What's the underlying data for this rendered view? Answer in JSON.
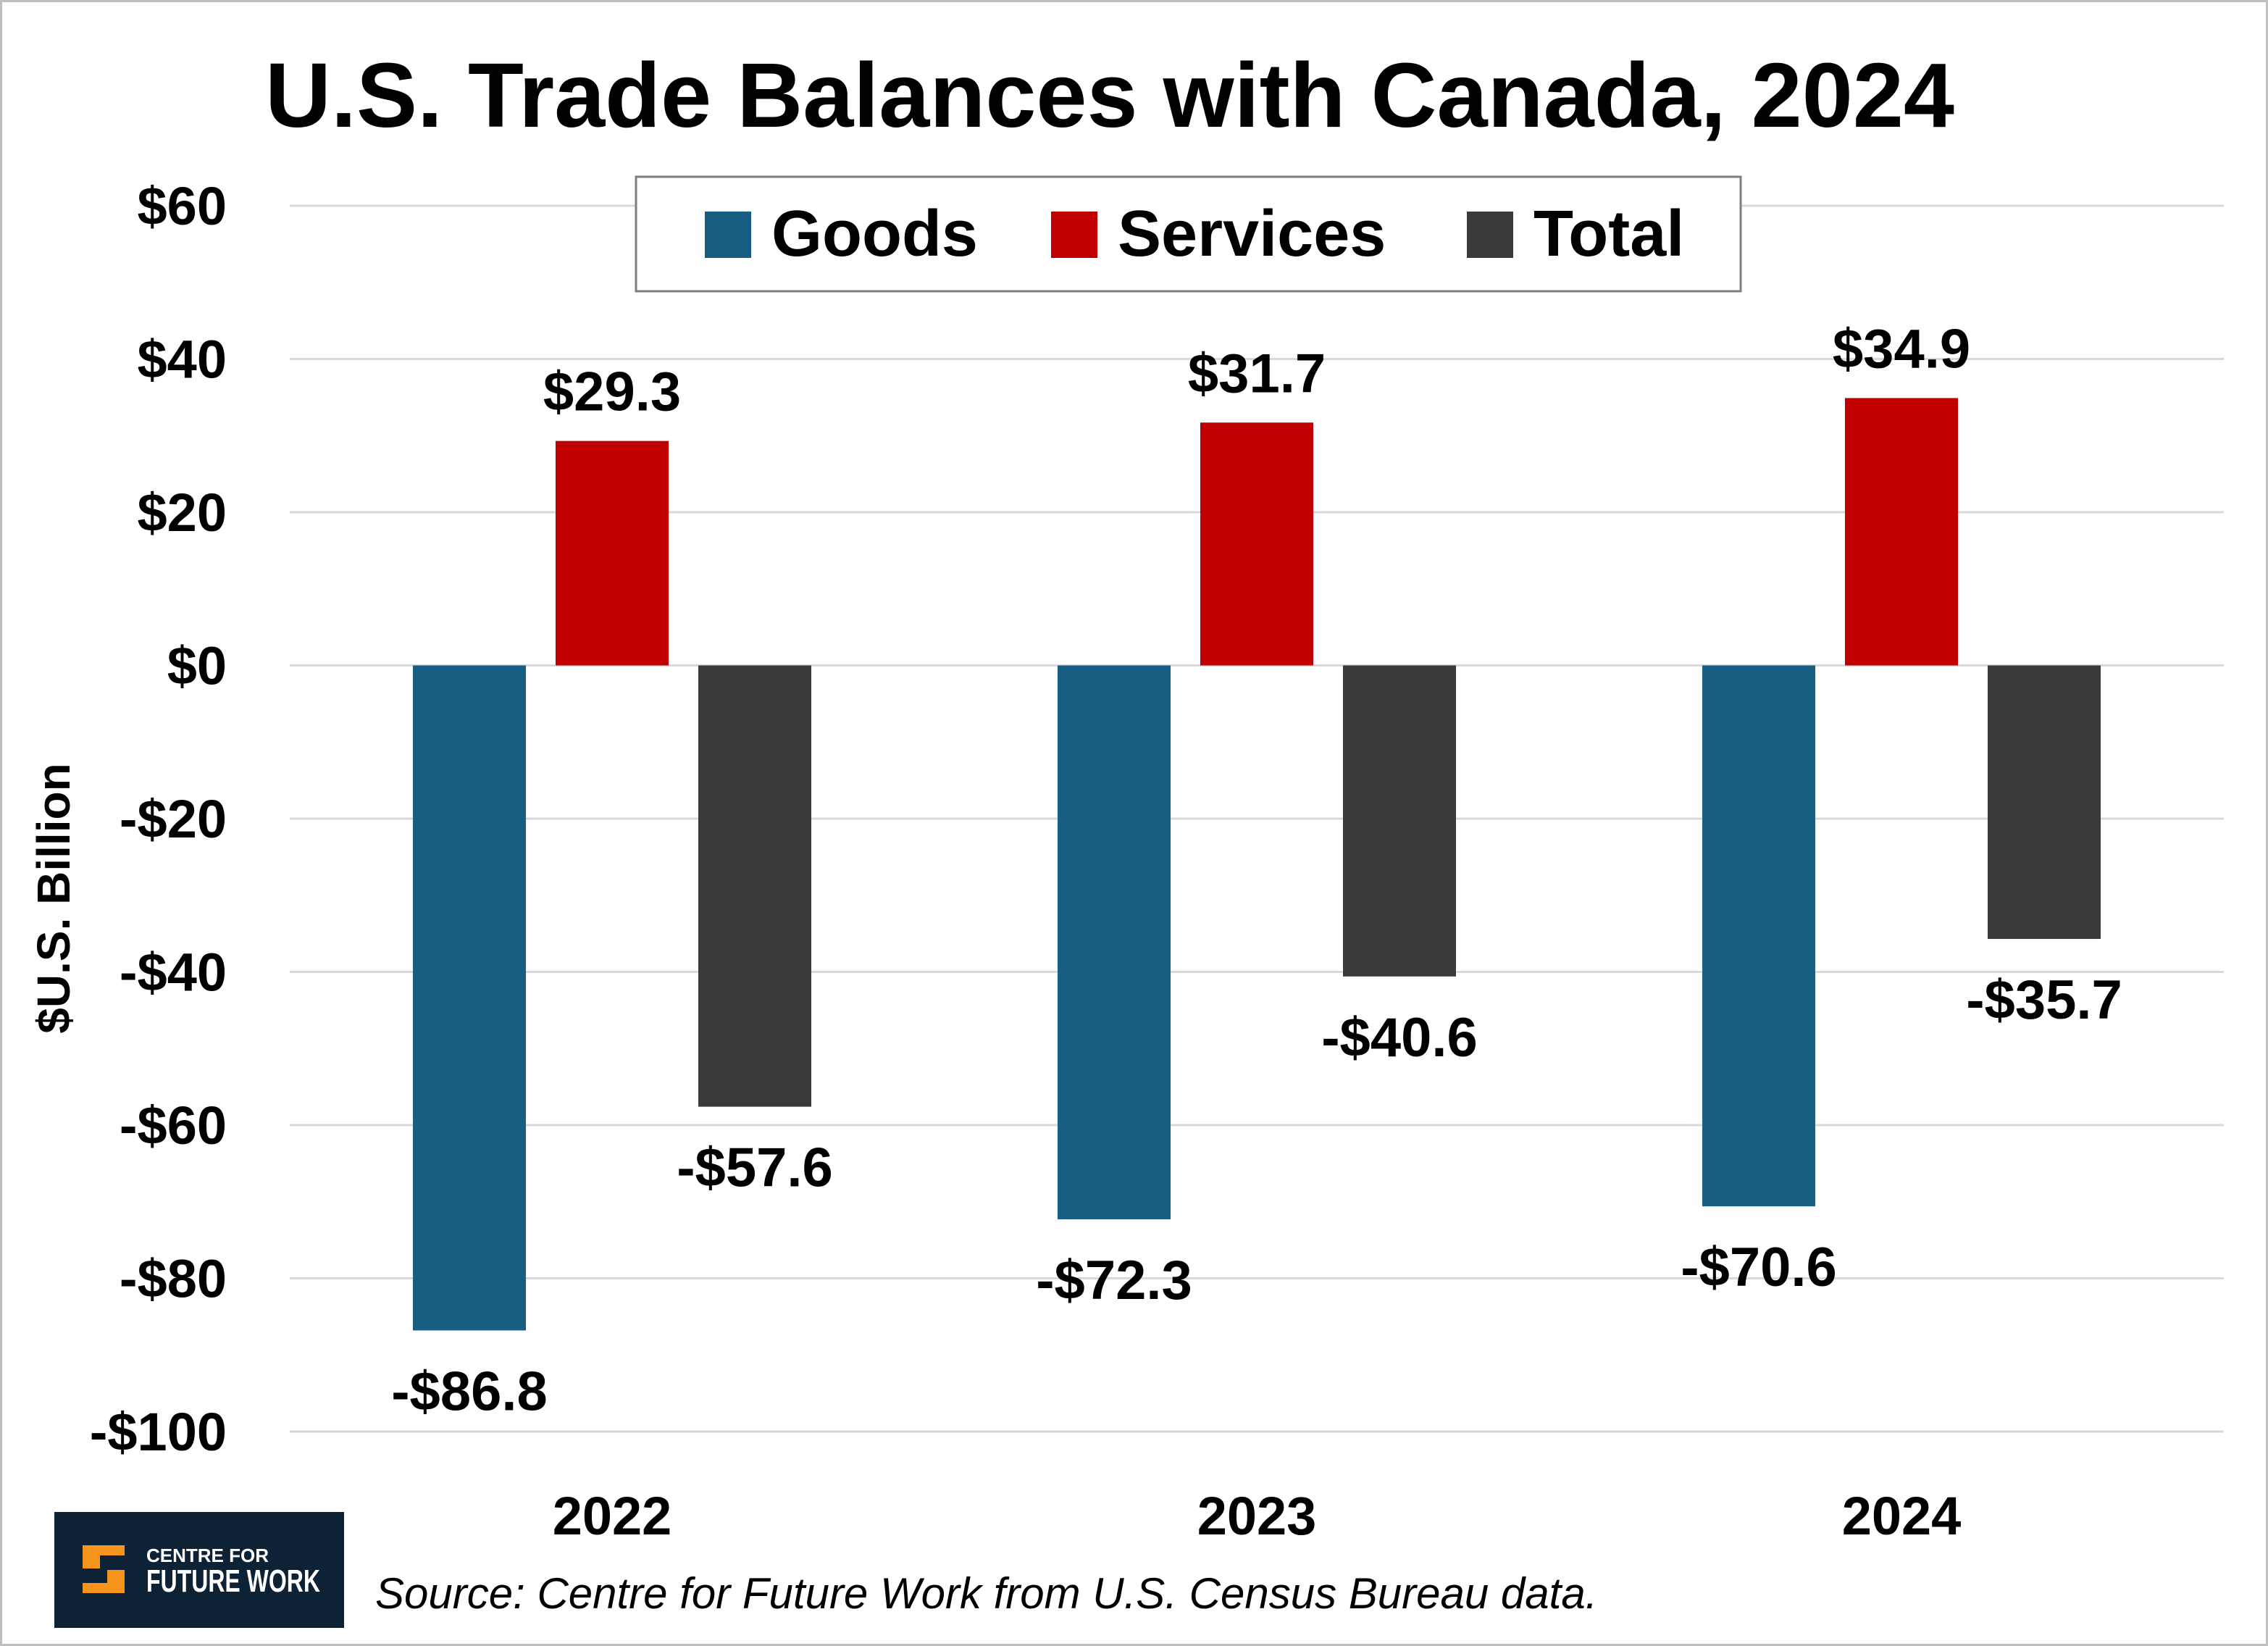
{
  "chart_data": {
    "type": "bar",
    "title": "U.S. Trade Balances with Canada, 2024",
    "ylabel": "$U.S. Billion",
    "xlabel": "",
    "categories": [
      "2022",
      "2023",
      "2024"
    ],
    "series": [
      {
        "name": "Goods",
        "color": "#175E82",
        "values": [
          -86.8,
          -72.3,
          -70.6
        ],
        "labels": [
          "-$86.8",
          "-$72.3",
          "-$70.6"
        ]
      },
      {
        "name": "Services",
        "color": "#C00000",
        "values": [
          29.3,
          31.7,
          34.9
        ],
        "labels": [
          "$29.3",
          "$31.7",
          "$34.9"
        ]
      },
      {
        "name": "Total",
        "color": "#3A3A3A",
        "values": [
          -57.6,
          -40.6,
          -35.7
        ],
        "labels": [
          "-$57.6",
          "-$40.6",
          "-$35.7"
        ]
      }
    ],
    "ylim": [
      -100,
      60
    ],
    "yticks": [
      60,
      40,
      20,
      0,
      -20,
      -40,
      -60,
      -80,
      -100
    ],
    "ytick_labels": [
      "$60",
      "$40",
      "$20",
      "$0",
      "-$20",
      "-$40",
      "-$60",
      "-$80",
      "-$100"
    ],
    "grid": true,
    "legend_position": "top"
  },
  "footer": {
    "source": "Source: Centre for Future Work from U.S. Census Bureau data.",
    "logo_line1": "CENTRE FOR",
    "logo_line2": "FUTURE WORK"
  }
}
